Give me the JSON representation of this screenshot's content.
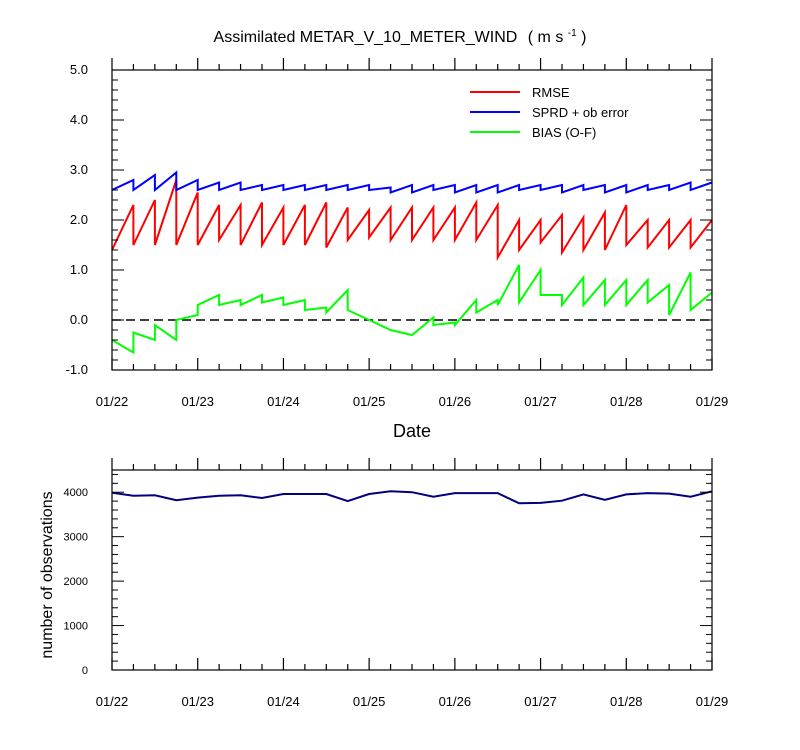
{
  "chart_data": [
    {
      "type": "line",
      "title": "Assimilated METAR_V_10_METER_WIND",
      "title_units": "( m s",
      "title_units_exp": "-1",
      "title_units_end": " )",
      "xlabel": "Date",
      "ylabel": "",
      "x_tick_labels": [
        "01/22",
        "01/23",
        "01/24",
        "01/25",
        "01/26",
        "01/27",
        "01/28",
        "01/29"
      ],
      "y_tick_labels": [
        "-1.0",
        "0.0",
        "1.0",
        "2.0",
        "3.0",
        "4.0",
        "5.0"
      ],
      "xlim": [
        0,
        7
      ],
      "ylim": [
        -1,
        5
      ],
      "zero_line": true,
      "legend_position": "top-right",
      "series": [
        {
          "name": "RMSE",
          "color": "#ff0000",
          "x": [
            0,
            0.25,
            0.25,
            0.5,
            0.5,
            0.75,
            0.75,
            1.0,
            1.0,
            1.25,
            1.25,
            1.5,
            1.5,
            1.75,
            1.75,
            2.0,
            2.0,
            2.25,
            2.25,
            2.5,
            2.5,
            2.75,
            2.75,
            3.0,
            3.0,
            3.25,
            3.25,
            3.5,
            3.5,
            3.75,
            3.75,
            4.0,
            4.0,
            4.25,
            4.25,
            4.5,
            4.5,
            4.75,
            4.75,
            5.0,
            5.0,
            5.25,
            5.25,
            5.5,
            5.5,
            5.75,
            5.75,
            6.0,
            6.0,
            6.25,
            6.25,
            6.5,
            6.5,
            6.75,
            6.75,
            7.0
          ],
          "values": [
            1.4,
            2.3,
            1.5,
            2.4,
            1.5,
            2.8,
            1.5,
            2.55,
            1.5,
            2.3,
            1.6,
            2.3,
            1.5,
            2.35,
            1.5,
            2.25,
            1.5,
            2.3,
            1.5,
            2.35,
            1.45,
            2.25,
            1.6,
            2.2,
            1.65,
            2.25,
            1.6,
            2.25,
            1.6,
            2.25,
            1.6,
            2.25,
            1.6,
            2.35,
            1.6,
            2.3,
            1.25,
            2.0,
            1.4,
            2.0,
            1.55,
            2.1,
            1.35,
            2.05,
            1.4,
            2.15,
            1.4,
            2.3,
            1.5,
            2.0,
            1.45,
            2.0,
            1.45,
            2.0,
            1.45,
            2.0
          ]
        },
        {
          "name": "SPRD + ob error",
          "color": "#0000ff",
          "x": [
            0,
            0.25,
            0.25,
            0.5,
            0.5,
            0.75,
            0.75,
            1.0,
            1.0,
            1.25,
            1.25,
            1.5,
            1.5,
            1.75,
            1.75,
            2.0,
            2.0,
            2.25,
            2.25,
            2.5,
            2.5,
            2.75,
            2.75,
            3.0,
            3.0,
            3.25,
            3.25,
            3.5,
            3.5,
            3.75,
            3.75,
            4.0,
            4.0,
            4.25,
            4.25,
            4.5,
            4.5,
            4.75,
            4.75,
            5.0,
            5.0,
            5.25,
            5.25,
            5.5,
            5.5,
            5.75,
            5.75,
            6.0,
            6.0,
            6.25,
            6.25,
            6.5,
            6.5,
            6.75,
            6.75,
            7.0
          ],
          "values": [
            2.6,
            2.8,
            2.6,
            2.9,
            2.6,
            2.95,
            2.6,
            2.8,
            2.6,
            2.75,
            2.6,
            2.75,
            2.6,
            2.7,
            2.6,
            2.7,
            2.6,
            2.7,
            2.6,
            2.7,
            2.6,
            2.7,
            2.6,
            2.7,
            2.6,
            2.65,
            2.55,
            2.7,
            2.55,
            2.7,
            2.6,
            2.7,
            2.55,
            2.7,
            2.55,
            2.7,
            2.55,
            2.7,
            2.6,
            2.7,
            2.6,
            2.7,
            2.55,
            2.7,
            2.6,
            2.7,
            2.55,
            2.7,
            2.55,
            2.7,
            2.6,
            2.7,
            2.6,
            2.75,
            2.6,
            2.75
          ]
        },
        {
          "name": "BIAS (O-F)",
          "color": "#00ff00",
          "x": [
            0,
            0.25,
            0.25,
            0.5,
            0.5,
            0.75,
            0.75,
            1.0,
            1.0,
            1.25,
            1.25,
            1.5,
            1.5,
            1.75,
            1.75,
            2.0,
            2.0,
            2.25,
            2.25,
            2.5,
            2.5,
            2.75,
            2.75,
            3.0,
            3.25,
            3.5,
            3.75,
            3.75,
            4.0,
            4.0,
            4.25,
            4.25,
            4.5,
            4.5,
            4.75,
            4.75,
            5.0,
            5.0,
            5.25,
            5.25,
            5.5,
            5.5,
            5.75,
            5.75,
            6.0,
            6.0,
            6.25,
            6.25,
            6.5,
            6.5,
            6.75,
            6.75,
            7.0
          ],
          "values": [
            -0.4,
            -0.65,
            -0.25,
            -0.4,
            -0.1,
            -0.4,
            0.0,
            0.1,
            0.3,
            0.5,
            0.3,
            0.4,
            0.3,
            0.5,
            0.35,
            0.45,
            0.3,
            0.4,
            0.2,
            0.25,
            0.15,
            0.6,
            0.2,
            0.0,
            -0.2,
            -0.3,
            0.05,
            -0.1,
            -0.05,
            -0.1,
            0.4,
            0.15,
            0.4,
            0.3,
            1.1,
            0.35,
            1.0,
            0.5,
            0.5,
            0.3,
            0.85,
            0.3,
            0.8,
            0.3,
            0.8,
            0.3,
            0.8,
            0.35,
            0.7,
            0.1,
            0.95,
            0.2,
            0.55
          ]
        }
      ]
    },
    {
      "type": "line",
      "title": "",
      "xlabel": "",
      "ylabel": "number of observations",
      "x_tick_labels": [
        "01/22",
        "01/23",
        "01/24",
        "01/25",
        "01/26",
        "01/27",
        "01/28",
        "01/29"
      ],
      "y_tick_labels": [
        "0",
        "1000",
        "2000",
        "3000",
        "4000"
      ],
      "xlim": [
        0,
        7
      ],
      "ylim": [
        0,
        4500
      ],
      "series": [
        {
          "name": "number of observations",
          "color": "#000080",
          "x": [
            0,
            0.25,
            0.5,
            0.75,
            1.0,
            1.25,
            1.5,
            1.75,
            2.0,
            2.25,
            2.5,
            2.75,
            3.0,
            3.25,
            3.5,
            3.75,
            4.0,
            4.25,
            4.5,
            4.75,
            5.0,
            5.25,
            5.5,
            5.75,
            6.0,
            6.25,
            6.5,
            6.75,
            7.0
          ],
          "values": [
            3990,
            3920,
            3930,
            3820,
            3880,
            3920,
            3930,
            3870,
            3960,
            3960,
            3960,
            3800,
            3960,
            4020,
            4000,
            3900,
            3980,
            3980,
            3980,
            3750,
            3760,
            3810,
            3950,
            3830,
            3950,
            3980,
            3970,
            3900,
            4020
          ]
        }
      ]
    }
  ]
}
